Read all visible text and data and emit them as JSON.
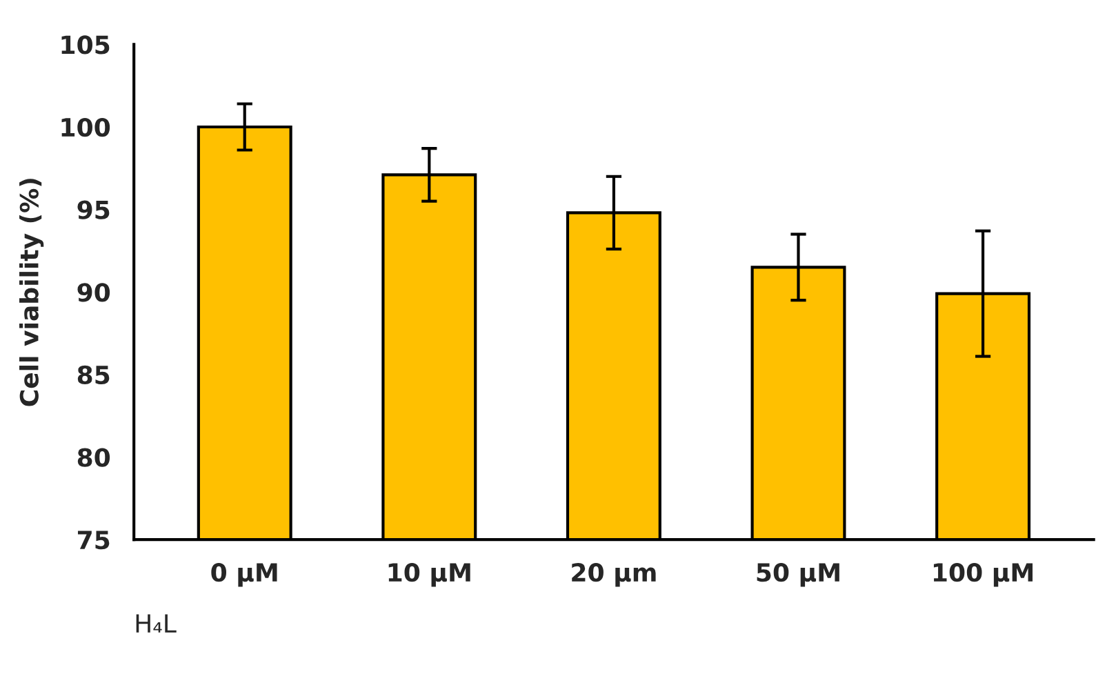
{
  "chart_data": {
    "type": "bar",
    "ylabel": "Cell viability (%)",
    "xlabel": "H₄L",
    "categories": [
      "0 μM",
      "10 μM",
      "20 μm",
      "50 μM",
      "100 μM"
    ],
    "values": [
      100.0,
      97.1,
      94.8,
      91.5,
      89.9
    ],
    "errors": [
      1.4,
      1.6,
      2.2,
      2.0,
      3.8
    ],
    "color": "#ffc000",
    "ylim": [
      75,
      105
    ],
    "yticks": [
      75,
      80,
      85,
      90,
      95,
      100,
      105
    ],
    "grid": false
  }
}
